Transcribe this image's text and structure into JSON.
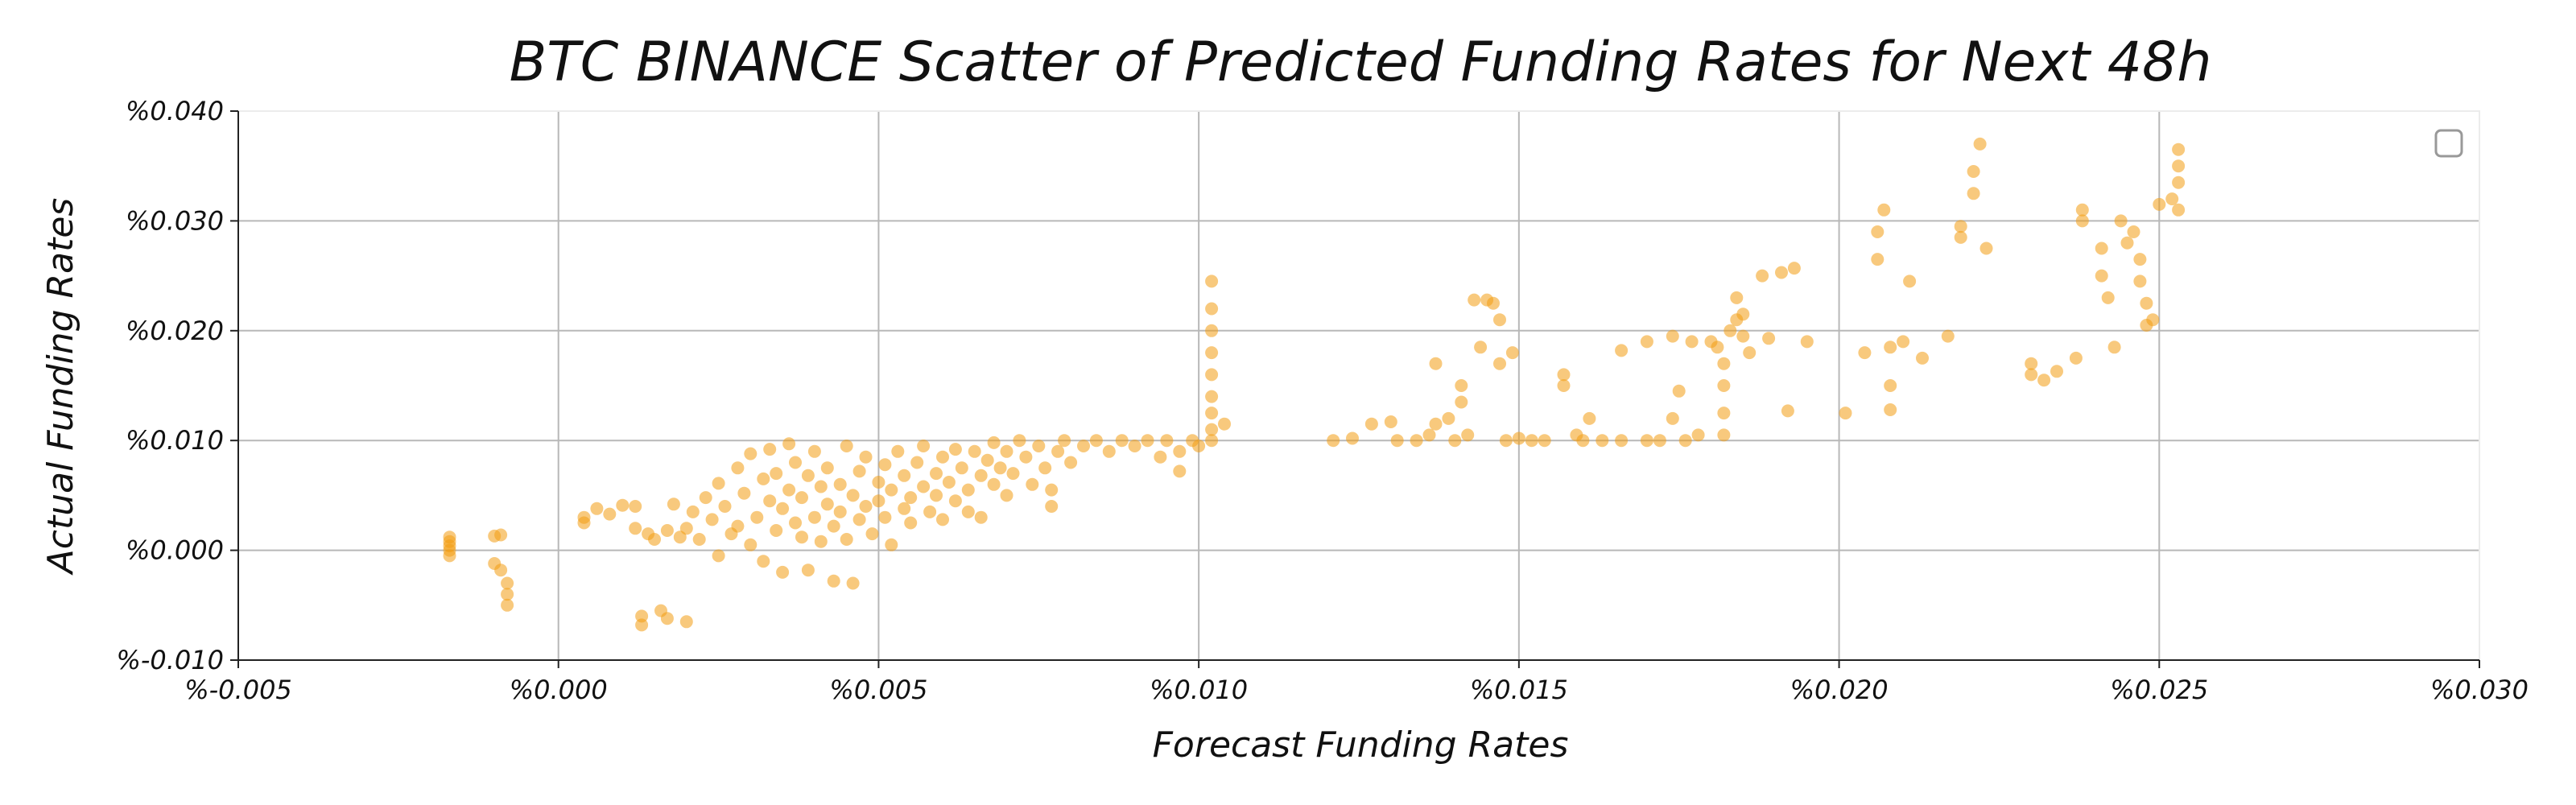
{
  "chart_data": {
    "type": "scatter",
    "title": "BTC BINANCE Scatter of Predicted Funding Rates for Next 48h",
    "xlabel": "Forecast Funding Rates",
    "ylabel": "Actual Funding Rates",
    "xlim": [
      -0.005,
      0.03
    ],
    "ylim": [
      -0.01,
      0.04
    ],
    "x_ticks": [
      -0.005,
      0.0,
      0.005,
      0.01,
      0.015,
      0.02,
      0.025,
      0.03
    ],
    "x_tick_labels": [
      "%-0.005",
      "%0.000",
      "%0.005",
      "%0.010",
      "%0.015",
      "%0.020",
      "%0.025",
      "%0.030"
    ],
    "y_ticks": [
      -0.01,
      0.0,
      0.01,
      0.02,
      0.03,
      0.04
    ],
    "y_tick_labels": [
      "%-0.010",
      "%0.000",
      "%0.010",
      "%0.020",
      "%0.030",
      "%0.040"
    ],
    "grid": true,
    "legend": "top-right",
    "color": "#f39c12",
    "points_note_free": true,
    "series": [
      {
        "points": [
          [
            -0.0017,
            0.0012
          ],
          [
            -0.0017,
            0.0008
          ],
          [
            -0.0017,
            0.0004
          ],
          [
            -0.0017,
            0.0
          ],
          [
            -0.0017,
            -0.0005
          ],
          [
            -0.001,
            0.0013
          ],
          [
            -0.0009,
            0.0014
          ],
          [
            -0.001,
            -0.0012
          ],
          [
            -0.0009,
            -0.0018
          ],
          [
            -0.0008,
            -0.003
          ],
          [
            -0.0008,
            -0.004
          ],
          [
            -0.0008,
            -0.005
          ],
          [
            0.0004,
            0.0025
          ],
          [
            0.0004,
            0.003
          ],
          [
            0.0006,
            0.0038
          ],
          [
            0.0008,
            0.0033
          ],
          [
            0.001,
            0.0041
          ],
          [
            0.0012,
            0.002
          ],
          [
            0.0012,
            0.004
          ],
          [
            0.0013,
            -0.006
          ],
          [
            0.0013,
            -0.0068
          ],
          [
            0.0014,
            0.0015
          ],
          [
            0.0015,
            0.001
          ],
          [
            0.0016,
            -0.0055
          ],
          [
            0.0017,
            0.0018
          ],
          [
            0.0017,
            -0.0062
          ],
          [
            0.0018,
            0.0042
          ],
          [
            0.0019,
            0.0012
          ],
          [
            0.002,
            -0.0065
          ],
          [
            0.002,
            0.002
          ],
          [
            0.0021,
            0.0035
          ],
          [
            0.0022,
            0.001
          ],
          [
            0.0023,
            0.0048
          ],
          [
            0.0024,
            0.0028
          ],
          [
            0.0025,
            -0.0005
          ],
          [
            0.0025,
            0.0061
          ],
          [
            0.0026,
            0.004
          ],
          [
            0.0027,
            0.0015
          ],
          [
            0.0028,
            0.0075
          ],
          [
            0.0028,
            0.0022
          ],
          [
            0.0029,
            0.0052
          ],
          [
            0.003,
            0.0005
          ],
          [
            0.003,
            0.0088
          ],
          [
            0.0031,
            0.003
          ],
          [
            0.0032,
            0.0065
          ],
          [
            0.0032,
            -0.001
          ],
          [
            0.0033,
            0.0045
          ],
          [
            0.0033,
            0.0092
          ],
          [
            0.0034,
            0.0018
          ],
          [
            0.0034,
            0.007
          ],
          [
            0.0035,
            0.0038
          ],
          [
            0.0035,
            -0.002
          ],
          [
            0.0036,
            0.0055
          ],
          [
            0.0036,
            0.0097
          ],
          [
            0.0037,
            0.0025
          ],
          [
            0.0037,
            0.008
          ],
          [
            0.0038,
            0.0012
          ],
          [
            0.0038,
            0.0048
          ],
          [
            0.0039,
            0.0068
          ],
          [
            0.0039,
            -0.0018
          ],
          [
            0.004,
            0.003
          ],
          [
            0.004,
            0.009
          ],
          [
            0.0041,
            0.0058
          ],
          [
            0.0041,
            0.0008
          ],
          [
            0.0042,
            0.0042
          ],
          [
            0.0042,
            0.0075
          ],
          [
            0.0043,
            0.0022
          ],
          [
            0.0043,
            -0.0028
          ],
          [
            0.0044,
            0.006
          ],
          [
            0.0044,
            0.0035
          ],
          [
            0.0045,
            0.0095
          ],
          [
            0.0045,
            0.001
          ],
          [
            0.0046,
            0.005
          ],
          [
            0.0046,
            -0.003
          ],
          [
            0.0047,
            0.0072
          ],
          [
            0.0047,
            0.0028
          ],
          [
            0.0048,
            0.004
          ],
          [
            0.0048,
            0.0085
          ],
          [
            0.0049,
            0.0015
          ],
          [
            0.005,
            0.0062
          ],
          [
            0.005,
            0.0045
          ],
          [
            0.0051,
            0.003
          ],
          [
            0.0051,
            0.0078
          ],
          [
            0.0052,
            0.0005
          ],
          [
            0.0052,
            0.0055
          ],
          [
            0.0053,
            0.009
          ],
          [
            0.0054,
            0.0038
          ],
          [
            0.0054,
            0.0068
          ],
          [
            0.0055,
            0.0048
          ],
          [
            0.0055,
            0.0025
          ],
          [
            0.0056,
            0.008
          ],
          [
            0.0057,
            0.0058
          ],
          [
            0.0057,
            0.0095
          ],
          [
            0.0058,
            0.0035
          ],
          [
            0.0059,
            0.007
          ],
          [
            0.0059,
            0.005
          ],
          [
            0.006,
            0.0028
          ],
          [
            0.006,
            0.0085
          ],
          [
            0.0061,
            0.0062
          ],
          [
            0.0062,
            0.0045
          ],
          [
            0.0062,
            0.0092
          ],
          [
            0.0063,
            0.0075
          ],
          [
            0.0064,
            0.0055
          ],
          [
            0.0064,
            0.0035
          ],
          [
            0.0065,
            0.009
          ],
          [
            0.0066,
            0.0068
          ],
          [
            0.0066,
            0.003
          ],
          [
            0.0067,
            0.0082
          ],
          [
            0.0068,
            0.006
          ],
          [
            0.0068,
            0.0098
          ],
          [
            0.0069,
            0.0075
          ],
          [
            0.007,
            0.009
          ],
          [
            0.007,
            0.005
          ],
          [
            0.0071,
            0.007
          ],
          [
            0.0072,
            0.01
          ],
          [
            0.0073,
            0.0085
          ],
          [
            0.0074,
            0.006
          ],
          [
            0.0075,
            0.0095
          ],
          [
            0.0076,
            0.0075
          ],
          [
            0.0077,
            0.004
          ],
          [
            0.0077,
            0.0055
          ],
          [
            0.0078,
            0.009
          ],
          [
            0.0079,
            0.01
          ],
          [
            0.008,
            0.008
          ],
          [
            0.0082,
            0.0095
          ],
          [
            0.0084,
            0.01
          ],
          [
            0.0086,
            0.009
          ],
          [
            0.0088,
            0.01
          ],
          [
            0.009,
            0.0095
          ],
          [
            0.0092,
            0.01
          ],
          [
            0.0094,
            0.0085
          ],
          [
            0.0095,
            0.01
          ],
          [
            0.0097,
            0.0072
          ],
          [
            0.0097,
            0.009
          ],
          [
            0.0099,
            0.01
          ],
          [
            0.01,
            0.0095
          ],
          [
            0.0102,
            0.01
          ],
          [
            0.0102,
            0.011
          ],
          [
            0.0102,
            0.0125
          ],
          [
            0.0102,
            0.014
          ],
          [
            0.0102,
            0.016
          ],
          [
            0.0102,
            0.018
          ],
          [
            0.0102,
            0.02
          ],
          [
            0.0102,
            0.022
          ],
          [
            0.0102,
            0.0245
          ],
          [
            0.0104,
            0.0115
          ],
          [
            0.0121,
            0.01
          ],
          [
            0.0124,
            0.0102
          ],
          [
            0.0127,
            0.0115
          ],
          [
            0.013,
            0.0117
          ],
          [
            0.0131,
            0.01
          ],
          [
            0.0134,
            0.01
          ],
          [
            0.0136,
            0.0105
          ],
          [
            0.0137,
            0.017
          ],
          [
            0.0137,
            0.0115
          ],
          [
            0.0139,
            0.012
          ],
          [
            0.014,
            0.01
          ],
          [
            0.0141,
            0.015
          ],
          [
            0.0141,
            0.0135
          ],
          [
            0.0142,
            0.0105
          ],
          [
            0.0143,
            0.0228
          ],
          [
            0.0144,
            0.0185
          ],
          [
            0.0145,
            0.0228
          ],
          [
            0.0146,
            0.0225
          ],
          [
            0.0147,
            0.021
          ],
          [
            0.0147,
            0.017
          ],
          [
            0.0148,
            0.01
          ],
          [
            0.0149,
            0.018
          ],
          [
            0.015,
            0.0102
          ],
          [
            0.0152,
            0.01
          ],
          [
            0.0154,
            0.01
          ],
          [
            0.0157,
            0.016
          ],
          [
            0.0157,
            0.015
          ],
          [
            0.0159,
            0.0105
          ],
          [
            0.016,
            0.01
          ],
          [
            0.0161,
            0.012
          ],
          [
            0.0163,
            0.01
          ],
          [
            0.0166,
            0.0182
          ],
          [
            0.0166,
            0.01
          ],
          [
            0.017,
            0.019
          ],
          [
            0.017,
            0.01
          ],
          [
            0.0172,
            0.01
          ],
          [
            0.0174,
            0.0195
          ],
          [
            0.0174,
            0.012
          ],
          [
            0.0175,
            0.0145
          ],
          [
            0.0176,
            0.01
          ],
          [
            0.0177,
            0.019
          ],
          [
            0.0178,
            0.0105
          ],
          [
            0.018,
            0.019
          ],
          [
            0.0181,
            0.0185
          ],
          [
            0.0182,
            0.017
          ],
          [
            0.0182,
            0.015
          ],
          [
            0.0182,
            0.0125
          ],
          [
            0.0182,
            0.0105
          ],
          [
            0.0183,
            0.02
          ],
          [
            0.0184,
            0.023
          ],
          [
            0.0184,
            0.021
          ],
          [
            0.0185,
            0.0195
          ],
          [
            0.0185,
            0.0215
          ],
          [
            0.0186,
            0.018
          ],
          [
            0.0188,
            0.025
          ],
          [
            0.0189,
            0.0193
          ],
          [
            0.0191,
            0.0253
          ],
          [
            0.0192,
            0.0127
          ],
          [
            0.0193,
            0.0257
          ],
          [
            0.0195,
            0.019
          ],
          [
            0.0201,
            0.0125
          ],
          [
            0.0204,
            0.018
          ],
          [
            0.0206,
            0.0265
          ],
          [
            0.0206,
            0.029
          ],
          [
            0.0207,
            0.031
          ],
          [
            0.0208,
            0.0185
          ],
          [
            0.0208,
            0.015
          ],
          [
            0.0208,
            0.0128
          ],
          [
            0.021,
            0.019
          ],
          [
            0.0211,
            0.0245
          ],
          [
            0.0213,
            0.0175
          ],
          [
            0.0217,
            0.0195
          ],
          [
            0.0219,
            0.0285
          ],
          [
            0.0219,
            0.0295
          ],
          [
            0.0221,
            0.0325
          ],
          [
            0.0221,
            0.0345
          ],
          [
            0.0222,
            0.037
          ],
          [
            0.0223,
            0.0275
          ],
          [
            0.023,
            0.017
          ],
          [
            0.023,
            0.016
          ],
          [
            0.0232,
            0.0155
          ],
          [
            0.0234,
            0.0163
          ],
          [
            0.0237,
            0.0175
          ],
          [
            0.0238,
            0.031
          ],
          [
            0.0238,
            0.03
          ],
          [
            0.0241,
            0.0275
          ],
          [
            0.0241,
            0.025
          ],
          [
            0.0242,
            0.023
          ],
          [
            0.0243,
            0.0185
          ],
          [
            0.0244,
            0.03
          ],
          [
            0.0245,
            0.028
          ],
          [
            0.0246,
            0.029
          ],
          [
            0.0247,
            0.0265
          ],
          [
            0.0247,
            0.0245
          ],
          [
            0.0248,
            0.0225
          ],
          [
            0.0248,
            0.0205
          ],
          [
            0.0249,
            0.021
          ],
          [
            0.025,
            0.0315
          ],
          [
            0.0252,
            0.032
          ],
          [
            0.0253,
            0.0365
          ],
          [
            0.0253,
            0.035
          ],
          [
            0.0253,
            0.0335
          ],
          [
            0.0253,
            0.031
          ]
        ]
      }
    ]
  }
}
